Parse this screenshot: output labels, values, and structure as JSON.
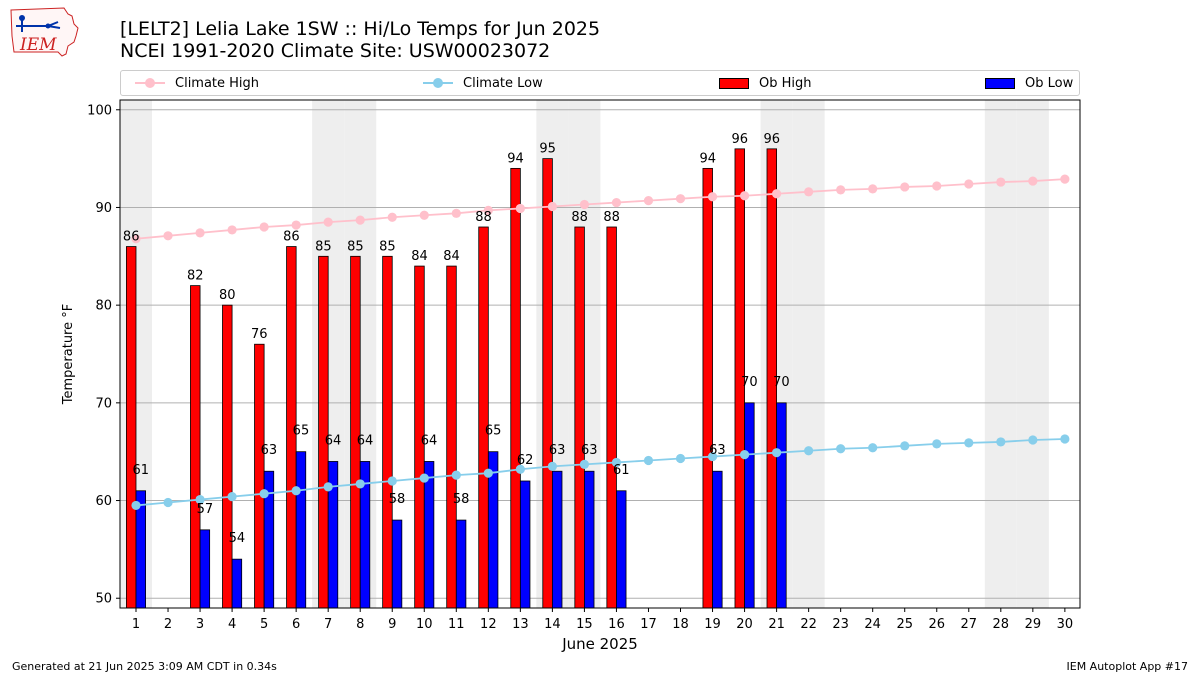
{
  "header": {
    "title_line1": "[LELT2] Lelia Lake 1SW :: Hi/Lo Temps for Jun 2025",
    "title_line2": "NCEI 1991-2020 Climate Site: USW00023072",
    "logo_text": "IEM"
  },
  "footer": {
    "left": "Generated at 21 Jun 2025 3:09 AM CDT in 0.34s",
    "right": "IEM Autoplot App #17"
  },
  "legend": {
    "climate_high": "Climate High",
    "climate_low": "Climate Low",
    "ob_high": "Ob High",
    "ob_low": "Ob Low"
  },
  "colors": {
    "ob_high": "#ff0000",
    "ob_low": "#0000ff",
    "climate_high": "#ffc0cb",
    "climate_low": "#87ceeb",
    "weekend_shade": "#eeeeee",
    "grid": "#b0b0b0"
  },
  "chart_data": {
    "type": "bar",
    "xlabel": "June 2025",
    "ylabel": "Temperature °F",
    "ylim": [
      49,
      101
    ],
    "yticks": [
      50,
      60,
      70,
      80,
      90,
      100
    ],
    "grid": "horizontal",
    "legend_placement": "top",
    "categories": [
      1,
      2,
      3,
      4,
      5,
      6,
      7,
      8,
      9,
      10,
      11,
      12,
      13,
      14,
      15,
      16,
      17,
      18,
      19,
      20,
      21,
      22,
      23,
      24,
      25,
      26,
      27,
      28,
      29,
      30
    ],
    "shaded_days": [
      1,
      7,
      8,
      14,
      15,
      21,
      22,
      28,
      29
    ],
    "series": [
      {
        "name": "Ob High",
        "type": "bar",
        "values": [
          86,
          null,
          82,
          80,
          76,
          86,
          85,
          85,
          85,
          84,
          84,
          88,
          94,
          95,
          88,
          88,
          null,
          null,
          94,
          96,
          96,
          null,
          null,
          null,
          null,
          null,
          null,
          null,
          null,
          null
        ]
      },
      {
        "name": "Ob Low",
        "type": "bar",
        "values": [
          61,
          null,
          57,
          54,
          63,
          65,
          64,
          64,
          58,
          64,
          58,
          65,
          62,
          63,
          63,
          61,
          null,
          null,
          63,
          70,
          70,
          null,
          null,
          null,
          null,
          null,
          null,
          null,
          null,
          null
        ]
      },
      {
        "name": "Climate High",
        "type": "line",
        "values": [
          86.8,
          87.1,
          87.4,
          87.7,
          88.0,
          88.2,
          88.5,
          88.7,
          89.0,
          89.2,
          89.4,
          89.7,
          89.9,
          90.1,
          90.3,
          90.5,
          90.7,
          90.9,
          91.1,
          91.2,
          91.4,
          91.6,
          91.8,
          91.9,
          92.1,
          92.2,
          92.4,
          92.6,
          92.7,
          92.9
        ]
      },
      {
        "name": "Climate Low",
        "type": "line",
        "values": [
          59.5,
          59.8,
          60.1,
          60.4,
          60.7,
          61.0,
          61.4,
          61.7,
          62.0,
          62.3,
          62.6,
          62.8,
          63.2,
          63.5,
          63.7,
          63.9,
          64.1,
          64.3,
          64.5,
          64.7,
          64.9,
          65.1,
          65.3,
          65.4,
          65.6,
          65.8,
          65.9,
          66.0,
          66.2,
          66.3
        ]
      }
    ]
  }
}
